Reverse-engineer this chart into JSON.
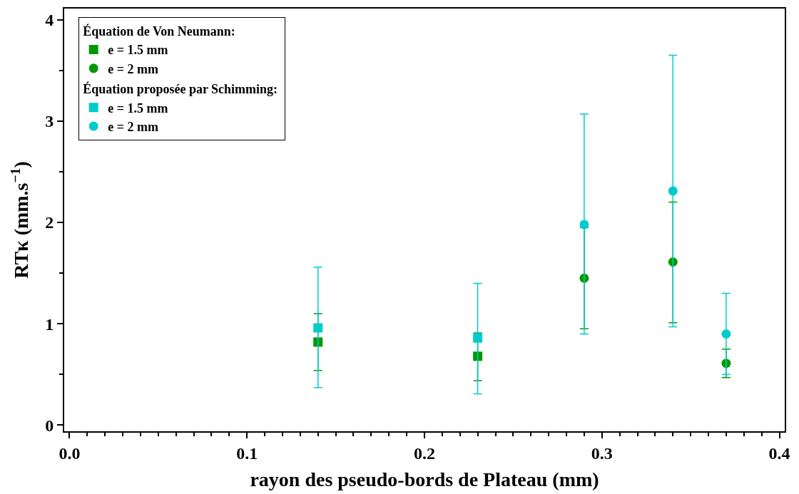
{
  "chart_data": {
    "type": "scatter",
    "xlabel": "rayon des pseudo-bords de Plateau (mm)",
    "ylabel": "RTκ (mm.s$^{−1}$)",
    "xlim": [
      -0.003,
      0.403
    ],
    "xticks": [
      {
        "value": 0,
        "label": "0.0"
      },
      0.1,
      0.2,
      0.3,
      0.4
    ],
    "ylim": [
      -0.06,
      4.11
    ],
    "annotations": [
      "Équation de Von Neumann:",
      "Équation proposée par Schimming:"
    ],
    "yticks": [
      0,
      1,
      2,
      3,
      4
    ],
    "legend": "top left",
    "series": [
      {
        "name": "e = 1.5 mm",
        "marker": "square",
        "color": "#009900",
        "x": [
          0.14,
          0.23
        ],
        "values": [
          0.82,
          0.68
        ],
        "errors": [
          [
            0.54,
            1.1
          ],
          [
            0.44,
            0.91
          ]
        ]
      },
      {
        "name": "e = 2 mm",
        "marker": "circle",
        "color": "#009900",
        "x": [
          0.29,
          0.34,
          0.37
        ],
        "values": [
          1.45,
          1.61,
          0.61
        ],
        "errors": [
          [
            0.95,
            1.95
          ],
          [
            1.01,
            2.2
          ],
          [
            0.47,
            0.75
          ]
        ]
      },
      {
        "name": "e = 1.5 mm",
        "marker": "square",
        "color": "#00cccc",
        "x": [
          0.14,
          0.23
        ],
        "values": [
          0.96,
          0.86
        ],
        "errors": [
          [
            0.37,
            1.56
          ],
          [
            0.31,
            1.4
          ]
        ]
      },
      {
        "name": "e = 2 mm",
        "marker": "circle",
        "color": "#00cccc",
        "x": [
          0.29,
          0.34,
          0.37
        ],
        "values": [
          1.98,
          2.31,
          0.9
        ],
        "errors": [
          [
            0.9,
            3.07
          ],
          [
            0.97,
            3.65
          ],
          [
            0.5,
            1.3
          ]
        ]
      }
    ]
  }
}
